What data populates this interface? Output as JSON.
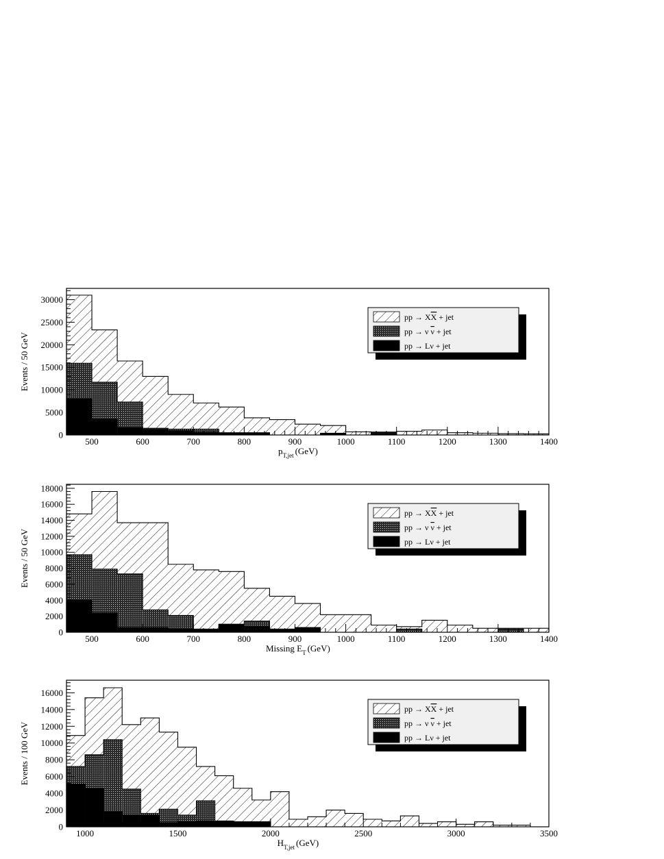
{
  "legend": {
    "entries": [
      {
        "prefix": "pp → X",
        "bar": "X",
        "suffix": " + jet",
        "style": "hatch"
      },
      {
        "prefix": "pp → ν ",
        "bar": "ν",
        "suffix": " + jet",
        "style": "dots"
      },
      {
        "prefix": "pp → Lν  + jet",
        "bar": "",
        "suffix": "",
        "style": "solid"
      }
    ]
  },
  "colors": {
    "frame": "#000000",
    "solid": "#000000",
    "legend_bg": "#f0f0f0"
  },
  "chart_data": [
    {
      "type": "bar",
      "ylabel": "Events / 50 GeV",
      "xlabel": {
        "main": "p",
        "sub": "T,jet",
        "unit": "(GeV)"
      },
      "xlim": [
        450,
        1400
      ],
      "ylim": [
        0,
        32500
      ],
      "xticks": [
        500,
        600,
        700,
        800,
        900,
        1000,
        1100,
        1200,
        1300,
        1400
      ],
      "yticks": [
        0,
        5000,
        10000,
        15000,
        20000,
        25000,
        30000
      ],
      "bin_edges": [
        450,
        500,
        550,
        600,
        650,
        700,
        750,
        800,
        850,
        900,
        950,
        1000,
        1050,
        1100,
        1150,
        1200,
        1250,
        1300,
        1350,
        1400
      ],
      "series": [
        {
          "style": "hatch",
          "values": [
            31000,
            23300,
            16400,
            13000,
            9000,
            7100,
            6200,
            3800,
            3400,
            2400,
            2100,
            700,
            650,
            800,
            1100,
            500,
            400,
            300,
            250
          ]
        },
        {
          "style": "dots",
          "values": [
            15900,
            11700,
            7300,
            1500,
            1300,
            1300,
            300,
            100,
            0,
            0,
            400,
            0,
            600,
            0,
            0,
            0,
            0,
            0,
            0
          ]
        },
        {
          "style": "solid",
          "values": [
            8000,
            3500,
            1600,
            1200,
            1000,
            600,
            500,
            500,
            0,
            0,
            300,
            0,
            300,
            0,
            0,
            0,
            0,
            0,
            0
          ]
        }
      ]
    },
    {
      "type": "bar",
      "ylabel": "Events / 50 GeV",
      "xlabel": {
        "main": "Missing E",
        "sub": "T",
        "unit": "(GeV)"
      },
      "xlim": [
        450,
        1400
      ],
      "ylim": [
        0,
        18500
      ],
      "xticks": [
        500,
        600,
        700,
        800,
        900,
        1000,
        1100,
        1200,
        1300,
        1400
      ],
      "yticks": [
        0,
        2000,
        4000,
        6000,
        8000,
        10000,
        12000,
        14000,
        16000,
        18000
      ],
      "bin_edges": [
        450,
        500,
        550,
        600,
        650,
        700,
        750,
        800,
        850,
        900,
        950,
        1000,
        1050,
        1100,
        1150,
        1200,
        1250,
        1300,
        1350,
        1400
      ],
      "series": [
        {
          "style": "hatch",
          "values": [
            14800,
            17600,
            13700,
            13700,
            8500,
            7800,
            7600,
            5500,
            4500,
            3600,
            2200,
            2200,
            900,
            700,
            1500,
            900,
            500,
            500,
            500
          ]
        },
        {
          "style": "dots",
          "values": [
            9700,
            7900,
            7300,
            2800,
            2100,
            400,
            1000,
            1400,
            400,
            600,
            0,
            0,
            0,
            400,
            0,
            0,
            0,
            400,
            0
          ]
        },
        {
          "style": "solid",
          "values": [
            4000,
            2400,
            600,
            600,
            400,
            300,
            1000,
            700,
            300,
            600,
            0,
            0,
            0,
            0,
            0,
            0,
            0,
            0,
            0
          ]
        }
      ]
    },
    {
      "type": "bar",
      "ylabel": "Events / 100 GeV",
      "xlabel": {
        "main": "H",
        "sub": "T,jet",
        "unit": "(GeV)"
      },
      "xlim": [
        900,
        3500
      ],
      "ylim": [
        0,
        17500
      ],
      "xticks": [
        1000,
        1500,
        2000,
        2500,
        3000,
        3500
      ],
      "yticks": [
        0,
        2000,
        4000,
        6000,
        8000,
        10000,
        12000,
        14000,
        16000
      ],
      "bin_edges": [
        900,
        1000,
        1100,
        1200,
        1300,
        1400,
        1500,
        1600,
        1700,
        1800,
        1900,
        2000,
        2100,
        2200,
        2300,
        2400,
        2500,
        2600,
        2700,
        2800,
        2900,
        3000,
        3100,
        3200,
        3300,
        3400,
        3500
      ],
      "series": [
        {
          "style": "hatch",
          "values": [
            10900,
            15400,
            16600,
            12200,
            13000,
            11300,
            9500,
            7200,
            6100,
            4600,
            3200,
            4200,
            900,
            1200,
            2000,
            1600,
            900,
            700,
            1300,
            400,
            600,
            300,
            600,
            200,
            200,
            0
          ]
        },
        {
          "style": "dots",
          "values": [
            7200,
            8600,
            10400,
            4500,
            1600,
            2100,
            1400,
            3100,
            700,
            600,
            600,
            0,
            0,
            0,
            0,
            0,
            0,
            0,
            0,
            0,
            0,
            0,
            0,
            0,
            0,
            0
          ]
        },
        {
          "style": "solid",
          "values": [
            5100,
            4600,
            1800,
            1400,
            1400,
            500,
            600,
            700,
            600,
            600,
            600,
            0,
            0,
            0,
            0,
            0,
            0,
            0,
            0,
            0,
            0,
            0,
            0,
            0,
            0,
            0
          ]
        }
      ]
    }
  ]
}
